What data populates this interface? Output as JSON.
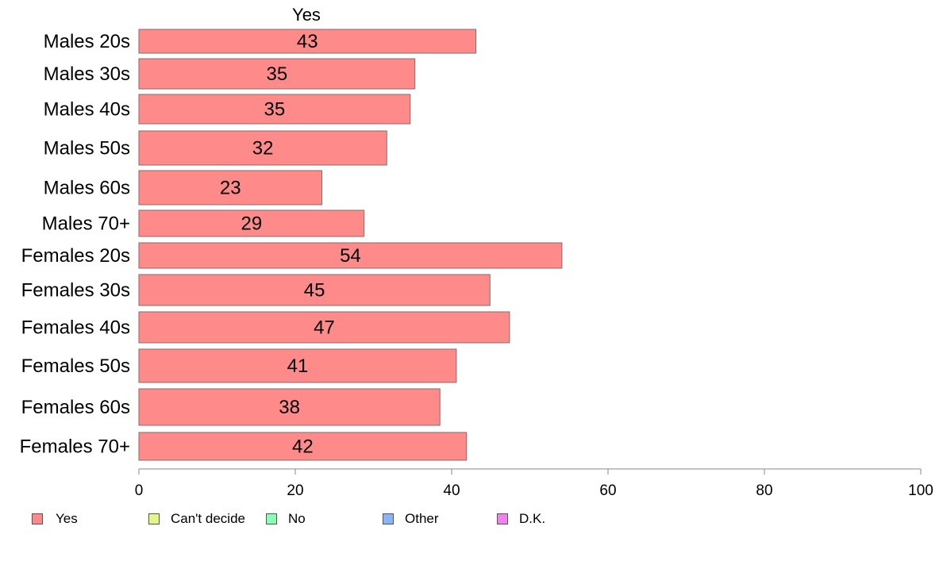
{
  "chart_data": {
    "type": "bar",
    "orientation": "horizontal",
    "stacked": true,
    "series_header": "Yes",
    "categories": [
      "Males 20s",
      "Males 30s",
      "Males 40s",
      "Males 50s",
      "Males 60s",
      "Males 70+",
      "Females 20s",
      "Females 30s",
      "Females 40s",
      "Females 50s",
      "Females 60s",
      "Females 70+"
    ],
    "series": [
      {
        "name": "Yes",
        "color": "#ff8a8a",
        "values": [
          43.1,
          35.3,
          34.7,
          31.7,
          23.4,
          28.8,
          54.1,
          44.9,
          47.4,
          40.6,
          38.5,
          41.9
        ],
        "labels": [
          "43",
          "35",
          "35",
          "32",
          "23",
          "29",
          "54",
          "45",
          "47",
          "41",
          "38",
          "42"
        ]
      }
    ],
    "xlim": [
      0,
      100
    ],
    "xticks": [
      0,
      20,
      40,
      60,
      80,
      100
    ],
    "xtick_labels": [
      "0",
      "20",
      "40",
      "60",
      "80",
      "100"
    ],
    "legend_position": "bottom-left",
    "legend": [
      {
        "label": "Yes",
        "color": "#ff8a8a"
      },
      {
        "label": "Can't decide",
        "color": "#e6f58a"
      },
      {
        "label": "No",
        "color": "#8affb4"
      },
      {
        "label": "Other",
        "color": "#8ab4f5"
      },
      {
        "label": "D.K.",
        "color": "#ee82ee"
      }
    ]
  }
}
